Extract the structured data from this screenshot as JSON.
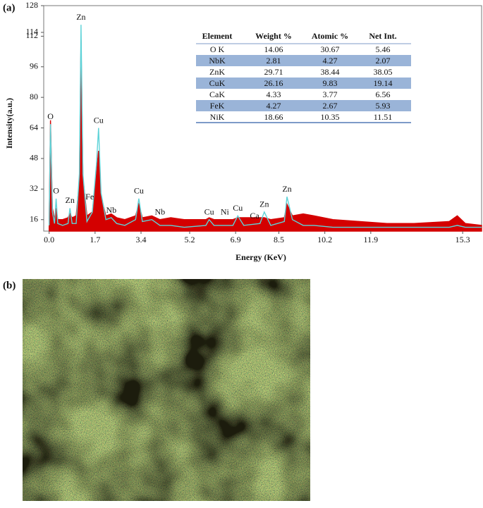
{
  "panels": [
    "(a)",
    "(b)"
  ],
  "chart_data": {
    "type": "line",
    "xlabel": "Energy (KeV)",
    "ylabel": "Intensity(a.u.)",
    "xlim": [
      -0.2,
      16.0
    ],
    "xticks": [
      {
        "value": 0,
        "label": "0.0"
      },
      1.7,
      3.4,
      5.2,
      6.9,
      8.5,
      10.2,
      11.9,
      15.3
    ],
    "ylim": [
      10,
      128
    ],
    "yticks": [
      16,
      32,
      48,
      64,
      80,
      96,
      112,
      114,
      128
    ],
    "x": [
      0,
      0.05,
      0.12,
      0.2,
      0.26,
      0.32,
      0.5,
      0.7,
      0.77,
      0.85,
      1.0,
      1.12,
      1.18,
      1.25,
      1.4,
      1.6,
      1.75,
      1.83,
      1.92,
      2.1,
      2.3,
      2.5,
      2.8,
      3.2,
      3.32,
      3.45,
      3.8,
      4.1,
      4.5,
      5.0,
      5.8,
      5.92,
      6.1,
      6.8,
      6.98,
      7.2,
      7.8,
      7.96,
      8.2,
      8.7,
      8.8,
      9.0,
      9.4,
      9.8,
      10.5,
      11.5,
      12.5,
      13.5,
      14.8,
      15.1,
      15.4,
      16.0
    ],
    "series": [
      {
        "color": "#d40000",
        "fill": true,
        "values": [
          14,
          68,
          22,
          16,
          22,
          16,
          16,
          17,
          19,
          17,
          18,
          36,
          110,
          38,
          18,
          20,
          40,
          52,
          28,
          18,
          19,
          17,
          16,
          18,
          24,
          17,
          18,
          16,
          17,
          16,
          16,
          17,
          16,
          16,
          17,
          17,
          17,
          17,
          16,
          17,
          24,
          18,
          19,
          18,
          16,
          15,
          14,
          14,
          15,
          18,
          14,
          13
        ]
      },
      {
        "color": "#5fd3d8",
        "fill": false,
        "values": [
          13,
          66,
          20,
          14,
          27,
          14,
          13,
          14,
          22,
          14,
          14,
          40,
          118,
          40,
          15,
          20,
          45,
          64,
          30,
          16,
          17,
          14,
          13,
          16,
          27,
          15,
          16,
          13,
          13,
          12,
          13,
          16,
          13,
          13,
          18,
          13,
          14,
          20,
          13,
          15,
          28,
          16,
          13,
          13,
          12,
          12,
          12,
          12,
          12,
          13,
          12,
          12
        ]
      }
    ],
    "annotations": [
      {
        "text": "O",
        "x": 0.05,
        "y": 66
      },
      {
        "text": "O",
        "x": 0.26,
        "y": 27
      },
      {
        "text": "Zn",
        "x": 0.77,
        "y": 22
      },
      {
        "text": "Zn",
        "x": 1.18,
        "y": 118
      },
      {
        "text": "Fe",
        "x": 1.5,
        "y": 24
      },
      {
        "text": "Cu",
        "x": 1.83,
        "y": 64
      },
      {
        "text": "Nb",
        "x": 2.3,
        "y": 17
      },
      {
        "text": "Cu",
        "x": 3.32,
        "y": 27
      },
      {
        "text": "Nb",
        "x": 4.1,
        "y": 16
      },
      {
        "text": "Cu",
        "x": 5.92,
        "y": 16
      },
      {
        "text": "Ni",
        "x": 6.5,
        "y": 16
      },
      {
        "text": "Cu",
        "x": 6.98,
        "y": 18
      },
      {
        "text": "Ca",
        "x": 7.6,
        "y": 14
      },
      {
        "text": "Zn",
        "x": 7.96,
        "y": 20
      },
      {
        "text": "Zn",
        "x": 8.8,
        "y": 28
      }
    ]
  },
  "table": {
    "columns": [
      "Element",
      "Weight %",
      "Atomic %",
      "Net Int."
    ],
    "rows": [
      [
        "O K",
        14.06,
        30.67,
        5.46
      ],
      [
        "NbK",
        2.81,
        4.27,
        2.07
      ],
      [
        "ZnK",
        29.71,
        38.44,
        38.05
      ],
      [
        "CuK",
        26.16,
        9.83,
        19.14
      ],
      [
        "CaK",
        4.33,
        3.77,
        6.56
      ],
      [
        "FeK",
        4.27,
        2.67,
        5.93
      ],
      [
        "NiK",
        18.66,
        10.35,
        11.51
      ]
    ]
  }
}
